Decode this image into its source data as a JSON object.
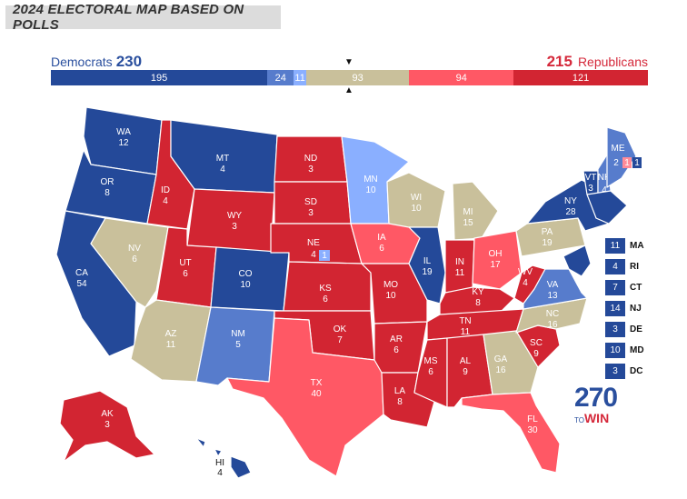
{
  "title": "2024 ELECTORAL MAP BASED ON POLLS",
  "dem": {
    "name": "Democrats",
    "total": "230"
  },
  "rep": {
    "name": "Republicans",
    "total": "215"
  },
  "colors": {
    "safe_d": "#244999",
    "likely_d": "#577ccc",
    "lean_d": "#8aafff",
    "tossup": "#c9c09b",
    "lean_r": "#ff8b98",
    "likely_r": "#ff5865",
    "safe_r": "#d22532"
  },
  "bar": [
    {
      "value": "195",
      "color": "#244999",
      "votes": 195
    },
    {
      "value": "24",
      "color": "#577ccc",
      "votes": 24
    },
    {
      "value": "11",
      "color": "#8aafff",
      "votes": 11
    },
    {
      "value": "93",
      "color": "#c9c09b",
      "votes": 93
    },
    {
      "value": "94",
      "color": "#ff5865",
      "votes": 94
    },
    {
      "value": "121",
      "color": "#d22532",
      "votes": 121
    }
  ],
  "states": {
    "WA": "12",
    "OR": "8",
    "CA": "54",
    "ID": "4",
    "NV": "6",
    "MT": "4",
    "WY": "3",
    "UT": "6",
    "AZ": "11",
    "CO": "10",
    "NM": "5",
    "ND": "3",
    "SD": "3",
    "NE": "4",
    "NE_d2": "1",
    "KS": "6",
    "OK": "7",
    "TX": "40",
    "MN": "10",
    "IA": "6",
    "MO": "10",
    "AR": "6",
    "LA": "8",
    "WI": "10",
    "IL": "19",
    "MS": "6",
    "MI": "15",
    "IN": "11",
    "KY": "8",
    "TN": "11",
    "AL": "9",
    "GA": "16",
    "FL": "30",
    "OH": "17",
    "WV": "4",
    "SC": "9",
    "NC": "16",
    "VA": "13",
    "PA": "19",
    "NY": "28",
    "VT": "3",
    "NH": "4",
    "ME": "2",
    "ME_d2": "1",
    "ME_d1": "1",
    "AK": "3",
    "HI": "4"
  },
  "small_states": [
    {
      "value": "11",
      "name": "MA"
    },
    {
      "value": "4",
      "name": "RI"
    },
    {
      "value": "7",
      "name": "CT"
    },
    {
      "value": "14",
      "name": "NJ"
    },
    {
      "value": "3",
      "name": "DE"
    },
    {
      "value": "10",
      "name": "MD"
    },
    {
      "value": "3",
      "name": "DC"
    }
  ],
  "logo": {
    "number": "270",
    "to": "TO",
    "win": "WIN"
  }
}
